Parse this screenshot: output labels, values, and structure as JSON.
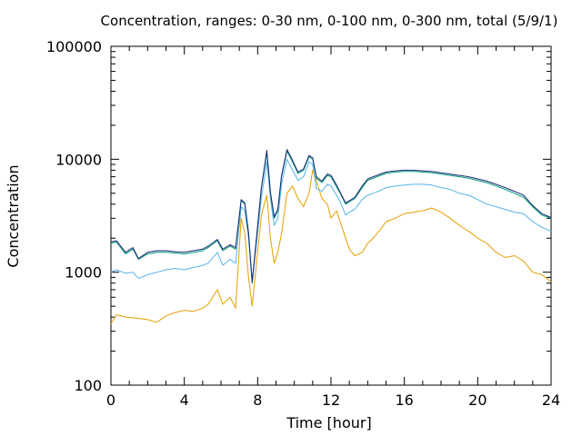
{
  "chart_data": {
    "type": "line",
    "title": "Concentration, ranges: 0-30 nm, 0-100 nm, 0-300 nm, total (5/9/1)",
    "xlabel": "Time [hour]",
    "ylabel": "Concentration",
    "xlim": [
      0,
      24
    ],
    "ylim": [
      100,
      100000
    ],
    "y_scale": "log",
    "x_ticks": [
      "0",
      "4",
      "8",
      "12",
      "16",
      "20",
      "24"
    ],
    "y_ticks": [
      "100",
      "1000",
      "10000",
      "100000"
    ],
    "grid": false,
    "legend": "none",
    "series": [
      {
        "color": "#e69f00",
        "x": [
          0,
          0.3,
          0.8,
          1.5,
          2,
          2.5,
          3,
          3.5,
          4,
          4.5,
          5,
          5.3,
          5.8,
          6.1,
          6.5,
          6.8,
          7.1,
          7.3,
          7.5,
          7.7,
          8.2,
          8.5,
          8.7,
          8.9,
          9.1,
          9.3,
          9.6,
          9.9,
          10.2,
          10.5,
          10.8,
          11,
          11.2,
          11.5,
          11.8,
          12,
          12.3,
          12.5,
          12.8,
          13,
          13.3,
          13.7,
          14,
          14.3,
          14.7,
          15,
          15.5,
          16,
          16.5,
          17,
          17.5,
          18,
          18.5,
          19,
          19.5,
          20,
          20.5,
          21,
          21.5,
          22,
          22.5,
          23,
          23.5,
          24
        ],
        "y": [
          350,
          420,
          400,
          390,
          380,
          360,
          410,
          440,
          460,
          450,
          480,
          520,
          700,
          520,
          600,
          480,
          3000,
          2200,
          900,
          500,
          3200,
          4800,
          2000,
          1200,
          1500,
          2200,
          5000,
          5800,
          4500,
          3800,
          5000,
          8000,
          6500,
          4500,
          4000,
          3000,
          3500,
          2800,
          2000,
          1600,
          1400,
          1500,
          1800,
          2000,
          2400,
          2800,
          3000,
          3300,
          3400,
          3500,
          3700,
          3400,
          3000,
          2600,
          2300,
          2000,
          1800,
          1500,
          1350,
          1400,
          1250,
          1000,
          950,
          820
        ]
      },
      {
        "color": "#56b4e9",
        "x": [
          0,
          0.3,
          0.8,
          1.2,
          1.5,
          2,
          2.5,
          3,
          3.5,
          4,
          4.5,
          5,
          5.3,
          5.8,
          6.1,
          6.5,
          6.8,
          7.1,
          7.3,
          7.5,
          7.7,
          8.2,
          8.5,
          8.7,
          8.9,
          9.1,
          9.3,
          9.6,
          9.9,
          10.2,
          10.5,
          10.8,
          11,
          11.2,
          11.5,
          11.8,
          12,
          12.3,
          12.5,
          12.8,
          13,
          13.3,
          13.7,
          14,
          14.3,
          14.7,
          15,
          15.5,
          16,
          16.5,
          17,
          17.5,
          18,
          18.5,
          19,
          19.5,
          20,
          20.5,
          21,
          21.5,
          22,
          22.5,
          23,
          23.5,
          24
        ],
        "y": [
          1000,
          1050,
          980,
          1000,
          880,
          950,
          1000,
          1050,
          1080,
          1050,
          1100,
          1150,
          1200,
          1500,
          1150,
          1300,
          1200,
          3800,
          3500,
          2000,
          800,
          4500,
          9500,
          4500,
          2600,
          3000,
          6000,
          10000,
          8000,
          6500,
          7000,
          9500,
          9000,
          5500,
          5200,
          6000,
          5800,
          4800,
          4200,
          3200,
          3400,
          3600,
          4400,
          4800,
          5000,
          5300,
          5600,
          5800,
          5900,
          6000,
          6000,
          5900,
          5600,
          5400,
          5000,
          4800,
          4400,
          4000,
          3800,
          3600,
          3400,
          3300,
          2800,
          2500,
          2300
        ]
      },
      {
        "color": "#009e73",
        "x": [
          0,
          0.3,
          0.8,
          1.2,
          1.5,
          2,
          2.5,
          3,
          3.5,
          4,
          4.5,
          5,
          5.3,
          5.8,
          6.1,
          6.5,
          6.8,
          7.1,
          7.3,
          7.5,
          7.7,
          8.2,
          8.5,
          8.7,
          8.9,
          9.1,
          9.3,
          9.6,
          9.9,
          10.2,
          10.5,
          10.8,
          11,
          11.2,
          11.5,
          11.8,
          12,
          12.3,
          12.5,
          12.8,
          13,
          13.3,
          13.7,
          14,
          14.3,
          14.7,
          15,
          15.5,
          16,
          16.5,
          17,
          17.5,
          18,
          18.5,
          19,
          19.5,
          20,
          20.5,
          21,
          21.5,
          22,
          22.5,
          23,
          23.5,
          24
        ],
        "y": [
          1800,
          1850,
          1450,
          1600,
          1300,
          1450,
          1500,
          1500,
          1480,
          1450,
          1500,
          1550,
          1650,
          1900,
          1550,
          1700,
          1600,
          4300,
          4000,
          2200,
          800,
          5500,
          11500,
          5000,
          3000,
          3500,
          7000,
          11800,
          9500,
          7500,
          8000,
          10500,
          10000,
          6800,
          6200,
          7200,
          7000,
          5700,
          5000,
          4000,
          4200,
          4500,
          5600,
          6500,
          6800,
          7200,
          7500,
          7700,
          7800,
          7800,
          7700,
          7600,
          7400,
          7200,
          7000,
          6800,
          6500,
          6200,
          5800,
          5400,
          5000,
          4600,
          3800,
          3200,
          3000
        ]
      },
      {
        "color": "#1f2a78",
        "x": [
          0,
          0.3,
          0.8,
          1.2,
          1.5,
          2,
          2.5,
          3,
          3.5,
          4,
          4.5,
          5,
          5.3,
          5.8,
          6.1,
          6.5,
          6.8,
          7.1,
          7.3,
          7.5,
          7.7,
          8.2,
          8.5,
          8.7,
          8.9,
          9.1,
          9.3,
          9.6,
          9.9,
          10.2,
          10.5,
          10.8,
          11,
          11.2,
          11.5,
          11.8,
          12,
          12.3,
          12.5,
          12.8,
          13,
          13.3,
          13.7,
          14,
          14.3,
          14.7,
          15,
          15.5,
          16,
          16.5,
          17,
          17.5,
          18,
          18.5,
          19,
          19.5,
          20,
          20.5,
          21,
          21.5,
          22,
          22.5,
          23,
          23.5,
          24
        ],
        "y": [
          1850,
          1900,
          1500,
          1650,
          1320,
          1500,
          1550,
          1550,
          1520,
          1500,
          1550,
          1600,
          1700,
          1950,
          1600,
          1750,
          1650,
          4400,
          4100,
          2250,
          820,
          5600,
          12000,
          5100,
          3100,
          3600,
          7200,
          12200,
          9800,
          7700,
          8200,
          10800,
          10300,
          7000,
          6400,
          7400,
          7200,
          5900,
          5100,
          4100,
          4300,
          4600,
          5800,
          6700,
          7000,
          7400,
          7700,
          7900,
          8000,
          8000,
          7900,
          7800,
          7600,
          7400,
          7200,
          7000,
          6700,
          6400,
          6000,
          5600,
          5200,
          4800,
          3900,
          3300,
          3050
        ]
      }
    ]
  }
}
